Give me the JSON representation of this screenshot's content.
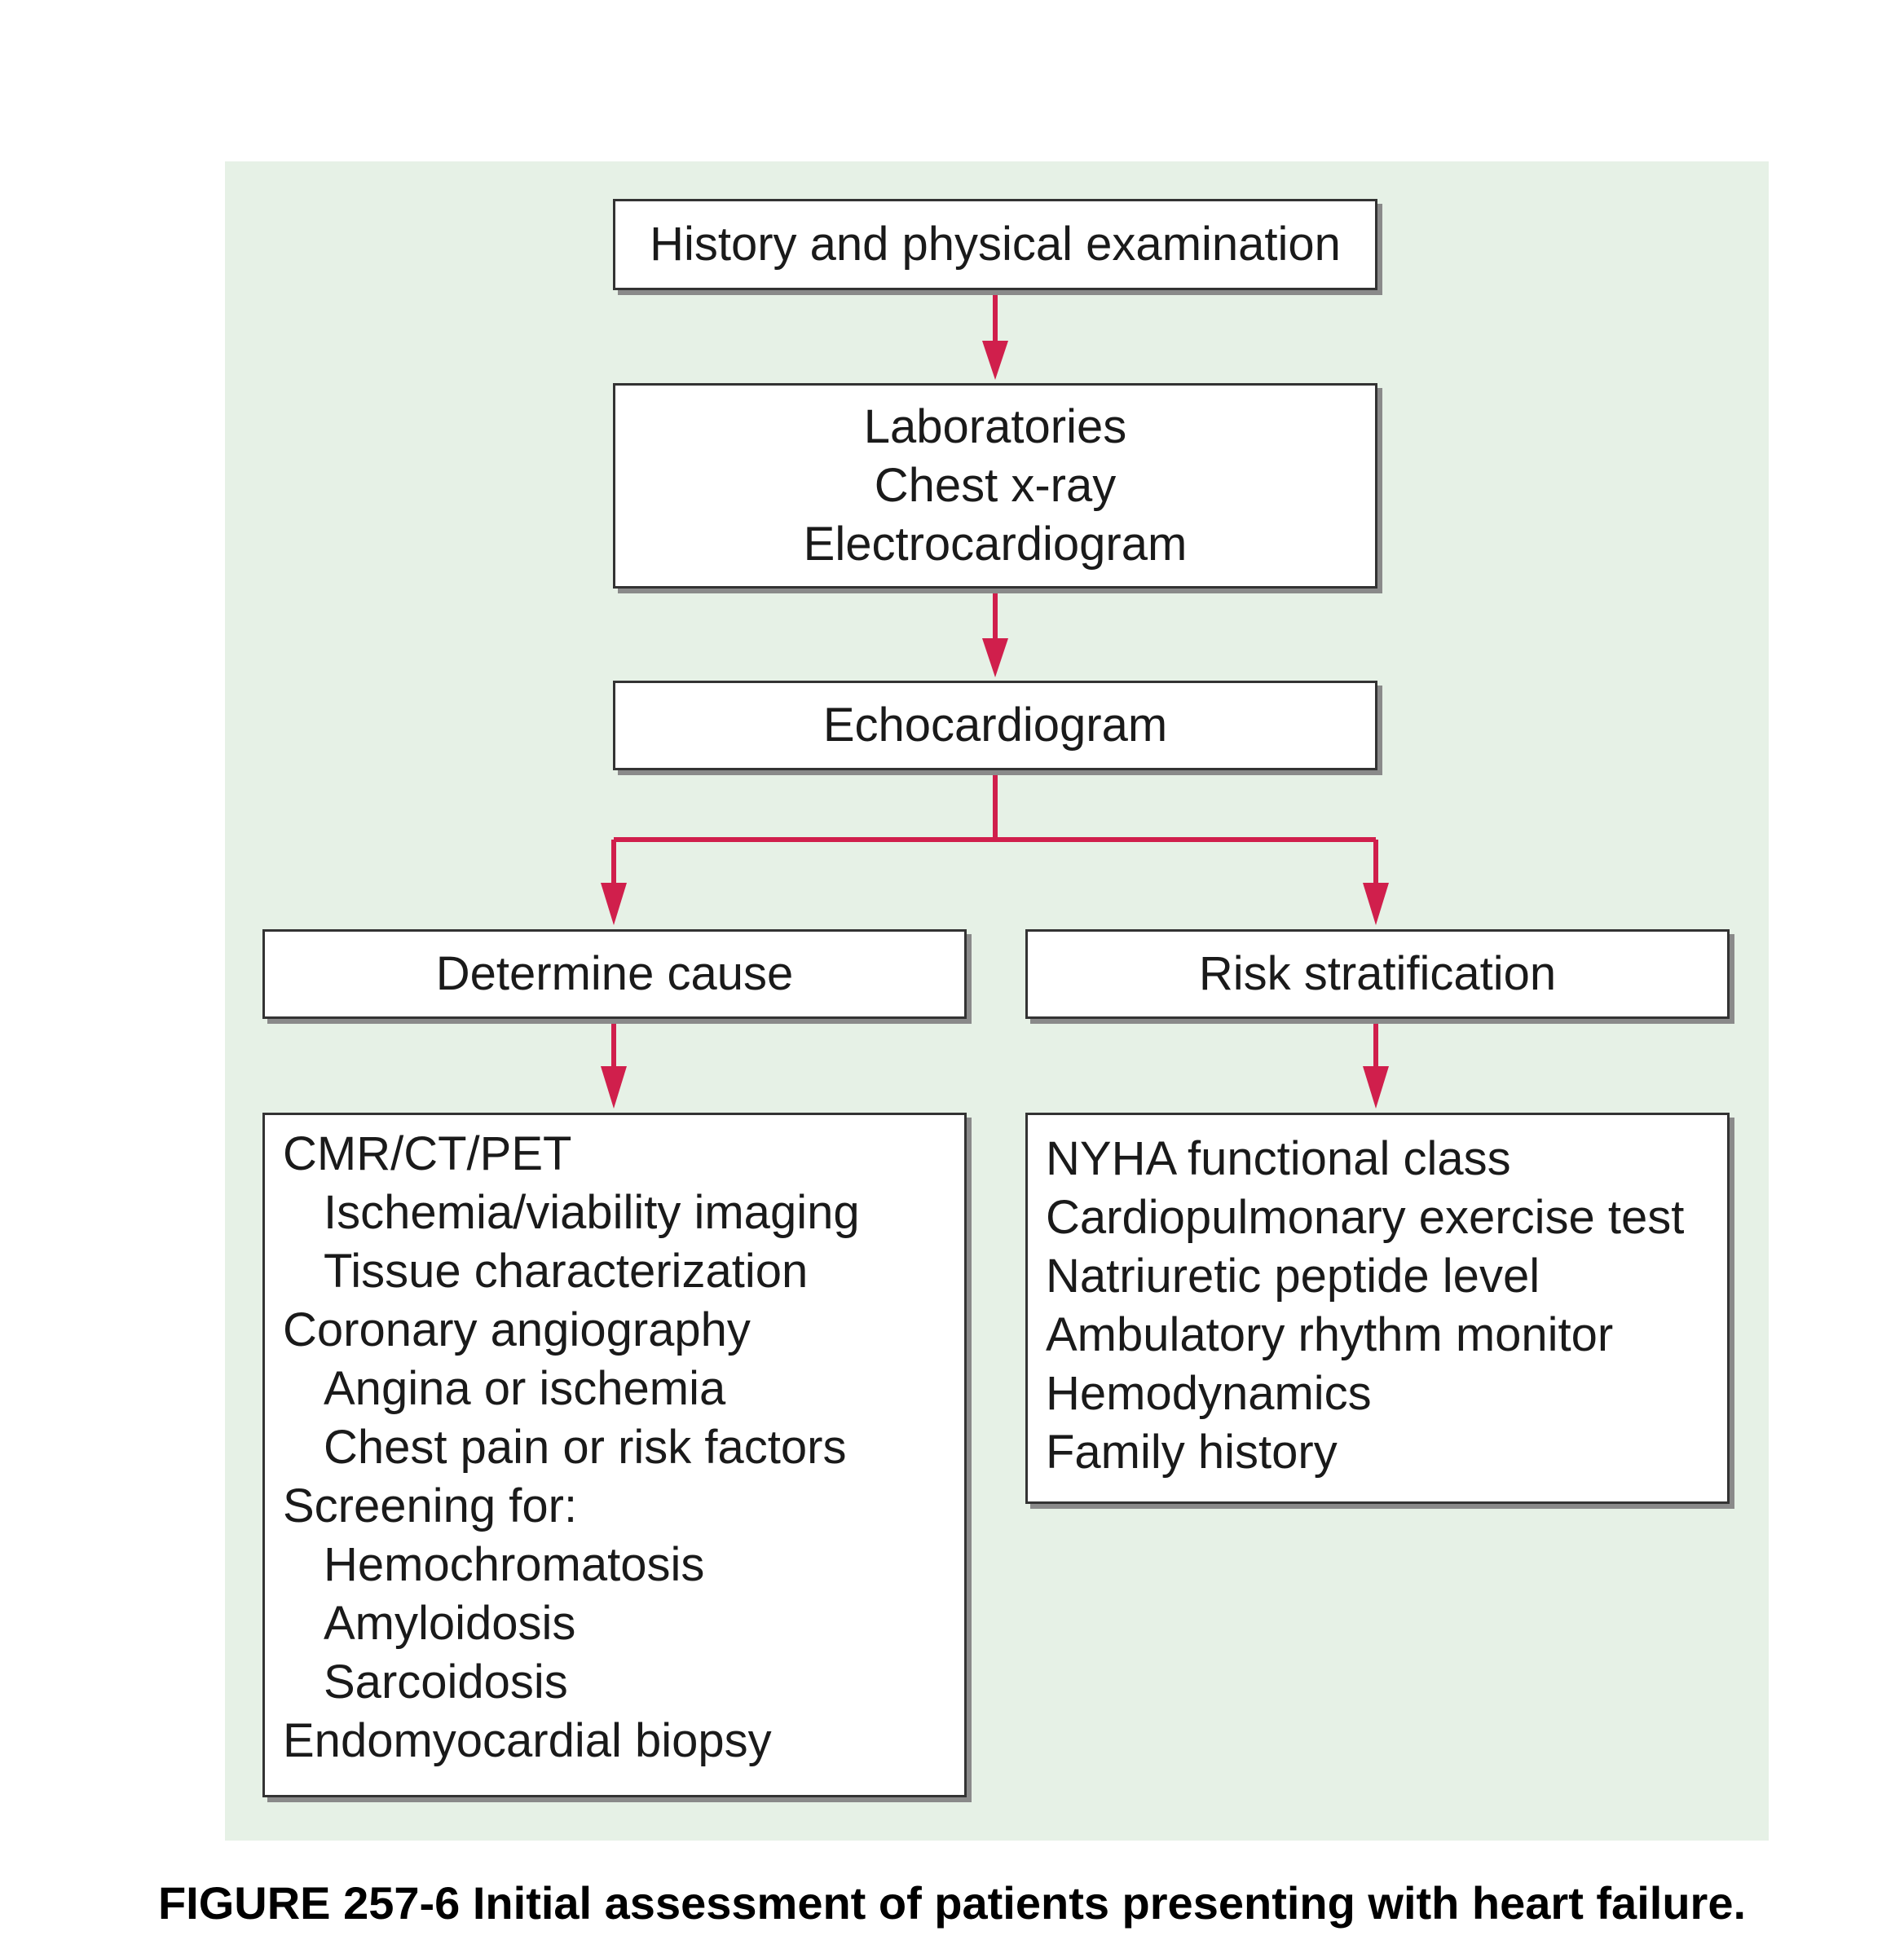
{
  "diagram": {
    "box_history": "History and physical examination",
    "box_labs": [
      "Laboratories",
      "Chest x-ray",
      "Electrocardiogram"
    ],
    "box_echo": "Echocardiogram",
    "box_cause": "Determine cause",
    "box_risk": "Risk stratification",
    "cause_items": [
      {
        "text": "CMR/CT/PET",
        "indent": false
      },
      {
        "text": "Ischemia/viability imaging",
        "indent": true
      },
      {
        "text": "Tissue characterization",
        "indent": true
      },
      {
        "text": "Coronary angiography",
        "indent": false
      },
      {
        "text": "Angina or ischemia",
        "indent": true
      },
      {
        "text": "Chest pain or risk factors",
        "indent": true
      },
      {
        "text": "Screening for:",
        "indent": false
      },
      {
        "text": "Hemochromatosis",
        "indent": true
      },
      {
        "text": "Amyloidosis",
        "indent": true
      },
      {
        "text": "Sarcoidosis",
        "indent": true
      },
      {
        "text": "Endomyocardial biopsy",
        "indent": false
      }
    ],
    "risk_items": [
      "NYHA functional class",
      "Cardiopulmonary exercise test",
      "Natriuretic peptide level",
      "Ambulatory rhythm monitor",
      "Hemodynamics",
      "Family history"
    ],
    "arrow_color": "#d01f4c",
    "background_color": "#e6f1e6"
  },
  "caption": "FIGURE 257-6 Initial assessment of patients presenting with heart failure."
}
